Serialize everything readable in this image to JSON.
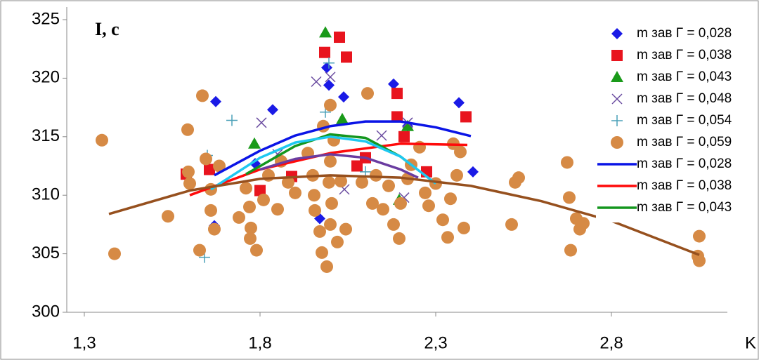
{
  "chart_data": {
    "type": "scatter",
    "y_label": "I, c",
    "x_label": "K",
    "xlim": [
      1.25,
      3.1
    ],
    "ylim": [
      300,
      325
    ],
    "xticks": [
      {
        "value": 1.3,
        "label": "1,3"
      },
      {
        "value": 1.8,
        "label": "1,8"
      },
      {
        "value": 2.3,
        "label": "2,3"
      },
      {
        "value": 2.8,
        "label": "2,8"
      }
    ],
    "yticks": [
      300,
      305,
      310,
      315,
      320,
      325
    ],
    "legend": "right",
    "grid": false,
    "series": [
      {
        "name": "m зав Г = 0,028",
        "color": "#1a1ae6",
        "marker": "diamond",
        "x": [
          1.674,
          1.836,
          1.99,
          1.996,
          2.038,
          2.18,
          2.366,
          2.406,
          1.67,
          1.97,
          1.786,
          2.22
        ],
        "values": [
          318.0,
          317.3,
          320.9,
          319.4,
          318.4,
          319.5,
          317.9,
          312.0,
          307.4,
          308.0,
          312.7,
          315.9
        ]
      },
      {
        "name": "m зав Г = 0,038",
        "color": "#e8141e",
        "marker": "square",
        "x": [
          1.984,
          2.026,
          2.046,
          2.19,
          2.19,
          2.386,
          1.59,
          1.656,
          1.89,
          2.076,
          2.274,
          2.1,
          1.8,
          2.21
        ],
        "values": [
          322.2,
          323.5,
          321.8,
          318.7,
          316.7,
          316.7,
          311.8,
          312.2,
          311.6,
          312.5,
          312.0,
          313.2,
          310.4,
          315.0
        ]
      },
      {
        "name": "m зав Г = 0,043",
        "color": "#1a9a1a",
        "marker": "triangle",
        "x": [
          1.986,
          2.034,
          2.196,
          2.22,
          1.784
        ],
        "values": [
          323.9,
          316.5,
          309.6,
          315.9,
          314.4
        ]
      },
      {
        "name": "m зав Г = 0,048",
        "color": "#6a4ca0",
        "marker": "x",
        "x": [
          1.804,
          1.96,
          2.0,
          2.146,
          2.22,
          2.04,
          2.21,
          1.85
        ],
        "values": [
          316.2,
          319.7,
          320.1,
          315.1,
          316.2,
          310.5,
          309.8,
          313.5
        ]
      },
      {
        "name": "m зав Г = 0,054",
        "color": "#4aa0b8",
        "marker": "plus",
        "x": [
          1.72,
          1.642,
          1.996,
          1.986,
          1.65,
          2.1
        ],
        "values": [
          316.4,
          304.7,
          321.3,
          317.1,
          313.4,
          312.0
        ]
      },
      {
        "name": "m зав Г = 0,059",
        "color": "#d68a45",
        "marker": "circle",
        "x": [
          1.35,
          1.386,
          1.538,
          1.594,
          1.596,
          1.6,
          1.636,
          1.628,
          1.646,
          1.66,
          1.67,
          1.66,
          1.684,
          1.74,
          1.76,
          1.77,
          1.774,
          1.772,
          1.79,
          1.81,
          1.824,
          1.85,
          1.86,
          1.88,
          1.9,
          1.936,
          1.95,
          1.954,
          1.956,
          1.97,
          1.976,
          1.99,
          1.98,
          2.0,
          2.01,
          2.0,
          1.996,
          2.004,
          2.0,
          2.02,
          2.03,
          2.044,
          2.106,
          2.09,
          2.12,
          2.13,
          2.15,
          2.166,
          2.18,
          2.196,
          2.2,
          2.22,
          2.23,
          2.254,
          2.27,
          2.28,
          2.3,
          2.32,
          2.334,
          2.342,
          2.35,
          2.36,
          2.37,
          2.38,
          2.516,
          2.526,
          2.536,
          2.674,
          2.68,
          2.684,
          2.7,
          2.71,
          2.72,
          3.05,
          3.046,
          3.05
        ],
        "values": [
          314.7,
          305.0,
          308.2,
          315.6,
          312.0,
          311.0,
          318.5,
          305.3,
          313.1,
          308.7,
          307.1,
          310.5,
          312.5,
          308.1,
          310.6,
          309.0,
          307.2,
          306.3,
          305.3,
          309.6,
          311.7,
          308.8,
          312.9,
          311.1,
          310.2,
          313.6,
          311.7,
          310.0,
          308.7,
          306.9,
          305.1,
          303.9,
          315.9,
          317.7,
          314.7,
          312.9,
          311.1,
          309.3,
          307.5,
          306.0,
          311.2,
          307.1,
          318.7,
          311.1,
          309.3,
          311.7,
          308.8,
          310.8,
          307.5,
          306.3,
          309.3,
          311.4,
          312.6,
          314.1,
          310.2,
          309.1,
          311.0,
          307.9,
          306.4,
          309.7,
          314.4,
          311.7,
          313.7,
          307.2,
          307.5,
          311.1,
          311.5,
          312.8,
          309.8,
          305.3,
          308.0,
          307.1,
          307.6,
          306.5,
          304.8,
          304.4
        ]
      },
      {
        "name": "m зав Г = 0,028",
        "color": "#0a14e6",
        "marker": "line",
        "x": [
          1.67,
          1.8,
          1.9,
          2.0,
          2.1,
          2.2,
          2.3,
          2.4
        ],
        "values": [
          311.7,
          313.8,
          315.1,
          315.9,
          316.3,
          316.3,
          315.8,
          315.05
        ]
      },
      {
        "name": "m зав Г = 0,038",
        "color": "#ff0a0a",
        "marker": "line",
        "x": [
          1.6,
          1.8,
          2.0,
          2.2,
          2.39
        ],
        "values": [
          310.0,
          312.2,
          313.6,
          314.4,
          314.3
        ]
      },
      {
        "name": "m зав Г = 0,043",
        "color": "#14961e",
        "marker": "line",
        "x": [
          1.76,
          1.9,
          2.0,
          2.1,
          2.2,
          2.23
        ],
        "values": [
          311.8,
          314.2,
          315.2,
          314.9,
          313.3,
          312.6
        ]
      },
      {
        "color": "#6a3ca0",
        "marker": "line",
        "x": [
          1.8,
          1.9,
          2.0,
          2.1,
          2.2,
          2.25
        ],
        "values": [
          312.2,
          313.1,
          313.5,
          313.2,
          312.2,
          311.5
        ]
      },
      {
        "color": "#1ec8f0",
        "marker": "line",
        "x": [
          1.66,
          1.8,
          1.9,
          2.0,
          2.1,
          2.2,
          2.3
        ],
        "values": [
          310.5,
          313.2,
          314.5,
          315.0,
          314.6,
          313.3,
          311.0
        ]
      },
      {
        "color": "#96501e",
        "marker": "line",
        "x": [
          1.37,
          1.6,
          1.8,
          2.0,
          2.2,
          2.4,
          2.6,
          2.8,
          3.05
        ],
        "values": [
          308.4,
          310.4,
          311.4,
          311.7,
          311.5,
          310.8,
          309.5,
          307.8,
          304.9
        ]
      }
    ]
  }
}
